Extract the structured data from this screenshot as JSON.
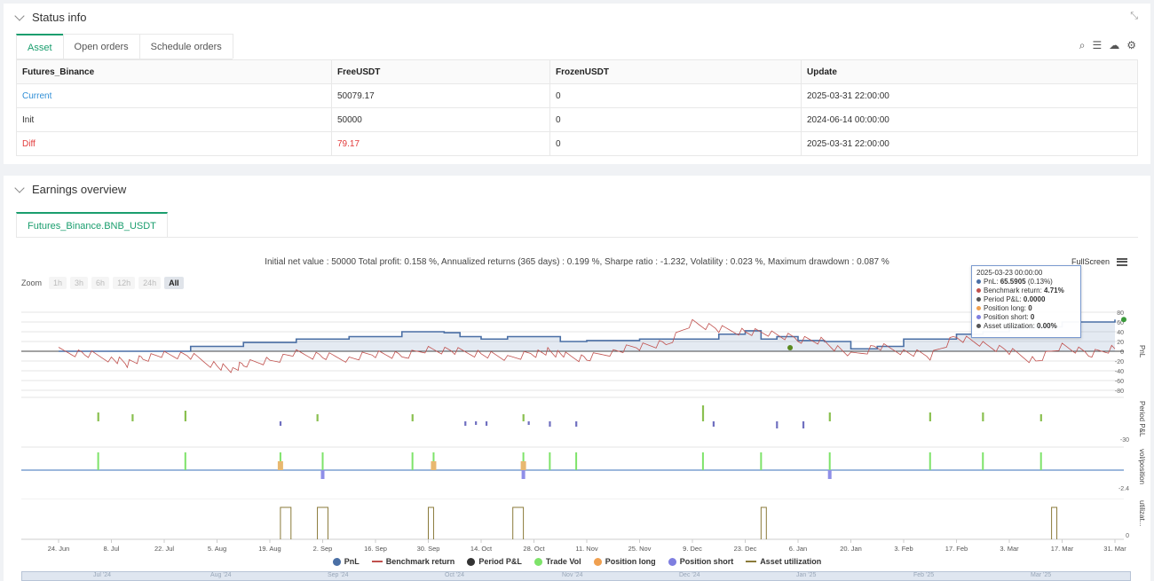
{
  "status": {
    "title": "Status info",
    "tabs": [
      "Asset",
      "Open orders",
      "Schedule orders"
    ],
    "table": {
      "headers": [
        "Futures_Binance",
        "FreeUSDT",
        "FrozenUSDT",
        "Update"
      ],
      "rows": [
        [
          "Current",
          "50079.17",
          "0",
          "2025-03-31 22:00:00"
        ],
        [
          "Init",
          "50000",
          "0",
          "2024-06-14 00:00:00"
        ],
        [
          "Diff",
          "79.17",
          "0",
          "2025-03-31 22:00:00"
        ]
      ]
    }
  },
  "earnings": {
    "title": "Earnings overview",
    "tab": "Futures_Binance.BNB_USDT",
    "summary": "Initial net value : 50000 Total profit: 0.158 %, Annualized returns (365 days) : 0.199 %, Sharpe ratio : -1.232, Volatility : 0.023 %, Maximum drawdown : 0.087 %",
    "fullscreen": "FullScreen",
    "zoom_label": "Zoom",
    "zoom_buttons": [
      "1h",
      "3h",
      "6h",
      "12h",
      "24h",
      "All"
    ],
    "tooltip": {
      "date": "2025-03-23 00:00:00",
      "items": [
        {
          "label": "PnL: ",
          "value": "65.5905",
          "extra": " (0.13%)",
          "color": "#4a6fa5"
        },
        {
          "label": "Benchmark return: ",
          "value": "4.71%",
          "extra": "",
          "color": "#c0504d"
        },
        {
          "label": "Period P&L: ",
          "value": "0.0000",
          "extra": "",
          "color": "#555555"
        },
        {
          "label": "Position long: ",
          "value": "0",
          "extra": "",
          "color": "#f0a050"
        },
        {
          "label": "Position short: ",
          "value": "0",
          "extra": "",
          "color": "#7f7fe0"
        },
        {
          "label": "Asset utilization: ",
          "value": "0.00%",
          "extra": "",
          "color": "#555555"
        }
      ]
    },
    "legend": [
      {
        "label": "PnL",
        "kind": "dot",
        "color": "#4a6fa5"
      },
      {
        "label": "Benchmark return",
        "kind": "line",
        "color": "#c0504d"
      },
      {
        "label": "Period P&L",
        "kind": "dot",
        "color": "#333333"
      },
      {
        "label": "Trade Vol",
        "kind": "dot",
        "color": "#7ee36a"
      },
      {
        "label": "Position long",
        "kind": "dot",
        "color": "#f0a050"
      },
      {
        "label": "Position short",
        "kind": "dot",
        "color": "#7f7fe0"
      },
      {
        "label": "Asset utilization",
        "kind": "line",
        "color": "#8a7a3a"
      }
    ],
    "navigator_labels": [
      "Jul '24",
      "Aug '24",
      "Sep '24",
      "Oct '24",
      "Nov '24",
      "Dec '24",
      "Jan '25",
      "Feb '25",
      "Mar '25"
    ]
  },
  "chart_data": {
    "type": "line",
    "x_ticks": [
      "24. Jun",
      "8. Jul",
      "22. Jul",
      "5. Aug",
      "19. Aug",
      "2. Sep",
      "16. Sep",
      "30. Sep",
      "14. Oct",
      "28. Oct",
      "11. Nov",
      "25. Nov",
      "9. Dec",
      "23. Dec",
      "6. Jan",
      "20. Jan",
      "3. Feb",
      "17. Feb",
      "3. Mar",
      "17. Mar",
      "31. Mar"
    ],
    "pnl_axis": {
      "label": "PnL",
      "ticks": [
        80,
        60,
        40,
        20,
        0,
        -20,
        -40,
        -60,
        -80
      ]
    },
    "period_axis": {
      "label": "Period P&L",
      "ticks": [
        -30
      ]
    },
    "vol_axis": {
      "label": "vol/position",
      "ticks": [
        -2.4
      ]
    },
    "util_axis": {
      "label": "utilizat...",
      "ticks": [
        0
      ]
    },
    "series": [
      {
        "name": "PnL",
        "x": [
          0,
          1,
          2,
          2.5,
          3,
          3.5,
          4,
          4.5,
          5,
          5.5,
          6,
          6.5,
          7,
          7.3,
          7.6,
          8,
          8.5,
          9,
          9.5,
          10,
          11,
          12,
          12.5,
          13,
          13.3,
          13.6,
          14,
          14.5,
          15,
          15.5,
          16,
          16.5,
          17,
          17.5,
          18,
          19,
          20
        ],
        "values": [
          0,
          0,
          0,
          10,
          10,
          18,
          18,
          25,
          25,
          30,
          30,
          40,
          40,
          38,
          30,
          25,
          30,
          30,
          20,
          22,
          25,
          25,
          35,
          42,
          25,
          30,
          22,
          20,
          5,
          10,
          25,
          25,
          35,
          40,
          50,
          60,
          65
        ]
      },
      {
        "name": "Benchmark return",
        "x": [
          0,
          0.5,
          1,
          1.3,
          1.6,
          2,
          2.5,
          3,
          3.3,
          3.5,
          4,
          4.5,
          5,
          5.5,
          6,
          6.5,
          7,
          7.5,
          8,
          8.5,
          9,
          9.3,
          9.6,
          10,
          10.5,
          11,
          11.5,
          12,
          12.5,
          13,
          13.5,
          14,
          14.5,
          15,
          15.5,
          16,
          16.5,
          17,
          17.5,
          18,
          18.5,
          19,
          19.5,
          20
        ],
        "values": [
          0,
          -5,
          -15,
          -25,
          -15,
          -5,
          -10,
          -30,
          -40,
          -25,
          -20,
          -5,
          -10,
          -15,
          -5,
          -10,
          5,
          0,
          -5,
          -15,
          -5,
          0,
          -10,
          -15,
          0,
          10,
          15,
          60,
          45,
          40,
          35,
          25,
          20,
          -10,
          10,
          0,
          -10,
          30,
          15,
          0,
          -20,
          10,
          -5,
          5
        ]
      }
    ]
  }
}
